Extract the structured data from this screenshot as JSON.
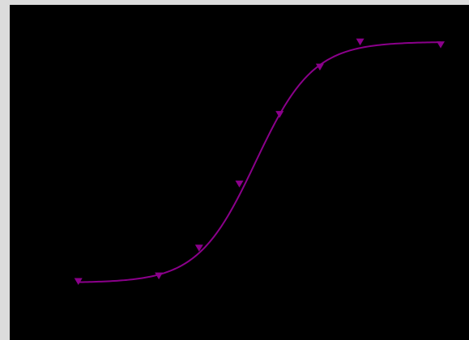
{
  "colors": {
    "background": "#000000",
    "frame": "#dcdcdc",
    "series": "#8b008b"
  },
  "chart_data": {
    "type": "line",
    "title": "",
    "xlabel": "",
    "ylabel": "",
    "xlim": [
      0,
      10
    ],
    "ylim": [
      0,
      1
    ],
    "grid": false,
    "legend": "none",
    "series": [
      {
        "marker": "triangle-down",
        "points": [
          {
            "x": 1.0,
            "y": 0.08
          },
          {
            "x": 3.0,
            "y": 0.1
          },
          {
            "x": 4.0,
            "y": 0.2
          },
          {
            "x": 5.0,
            "y": 0.43
          },
          {
            "x": 6.0,
            "y": 0.68
          },
          {
            "x": 7.0,
            "y": 0.85
          },
          {
            "x": 8.0,
            "y": 0.94
          },
          {
            "x": 10.0,
            "y": 0.93
          }
        ],
        "fit": {
          "model": "logistic",
          "bottom": 0.075,
          "top": 0.94,
          "midpoint": 5.4,
          "slope": 1.4
        }
      }
    ]
  }
}
